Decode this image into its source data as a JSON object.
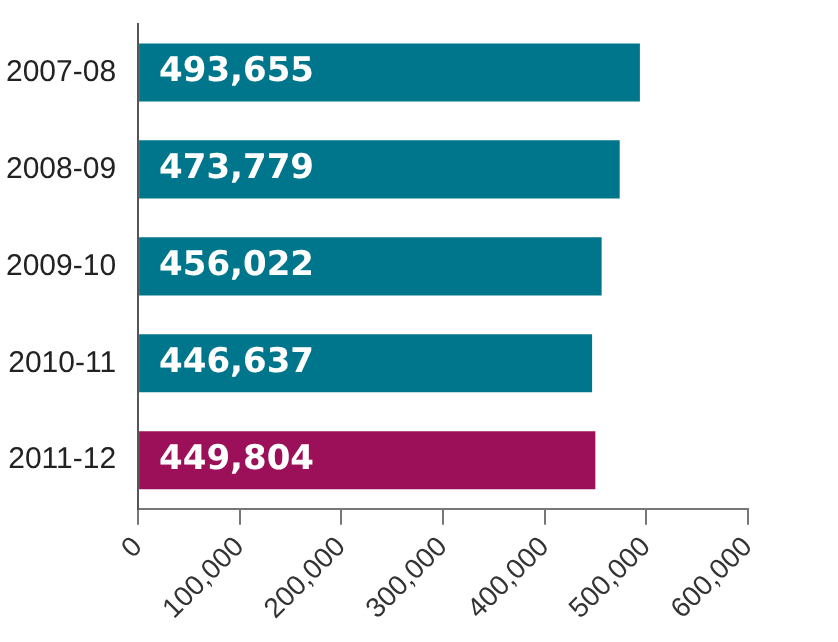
{
  "chart_data": {
    "type": "bar",
    "orientation": "horizontal",
    "categories": [
      "2007-08",
      "2008-09",
      "2009-10",
      "2010-11",
      "2011-12"
    ],
    "values": [
      493655,
      473779,
      456022,
      446637,
      449804
    ],
    "colors": [
      "#00768d",
      "#00768d",
      "#00768d",
      "#00768d",
      "#9b1058"
    ],
    "value_labels": [
      "493,655",
      "473,779",
      "456,022",
      "446,637",
      "449,804"
    ],
    "xlim": [
      0,
      600000
    ],
    "xticks": [
      0,
      {
        "value": 100000,
        "label": "100,000"
      },
      {
        "value": 200000,
        "label": "200,000"
      },
      {
        "value": 300000,
        "label": "300,000"
      },
      {
        "value": 400000,
        "label": "400,000"
      },
      {
        "value": 500000,
        "label": "500,000"
      },
      {
        "value": 600000,
        "label": "600,000"
      }
    ],
    "grid": false,
    "legend": false
  }
}
